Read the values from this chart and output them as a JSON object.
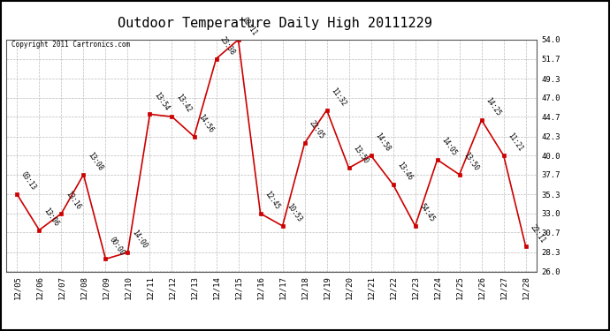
{
  "title": "Outdoor Temperature Daily High 20111229",
  "copyright": "Copyright 2011 Cartronics.com",
  "x_labels": [
    "12/05",
    "12/06",
    "12/07",
    "12/08",
    "12/09",
    "12/10",
    "12/11",
    "12/12",
    "12/13",
    "12/14",
    "12/15",
    "12/16",
    "12/17",
    "12/18",
    "12/19",
    "12/20",
    "12/21",
    "12/22",
    "12/23",
    "12/24",
    "12/25",
    "12/26",
    "12/27",
    "12/28"
  ],
  "y_values": [
    35.3,
    31.0,
    33.0,
    37.7,
    27.5,
    28.3,
    45.0,
    44.7,
    42.3,
    51.7,
    54.0,
    33.0,
    31.5,
    41.5,
    45.5,
    38.5,
    40.0,
    36.5,
    31.5,
    39.5,
    37.7,
    44.3,
    40.0,
    29.0
  ],
  "point_labels": [
    "03:13",
    "13:06",
    "13:16",
    "13:08",
    "00:00",
    "14:00",
    "13:54",
    "13:42",
    "14:56",
    "23:38",
    "02:11",
    "12:45",
    "10:53",
    "22:05",
    "11:32",
    "13:50",
    "14:58",
    "13:46",
    "54:45",
    "14:05",
    "13:50",
    "14:25",
    "11:21",
    "22:11"
  ],
  "y_min": 26.0,
  "y_max": 54.0,
  "y_ticks": [
    26.0,
    28.3,
    30.7,
    33.0,
    35.3,
    37.7,
    40.0,
    42.3,
    44.7,
    47.0,
    49.3,
    51.7,
    54.0
  ],
  "line_color": "#cc0000",
  "marker_color": "#cc0000",
  "background_color": "#ffffff",
  "grid_color": "#bbbbbb",
  "title_fontsize": 11,
  "label_fontsize": 7
}
